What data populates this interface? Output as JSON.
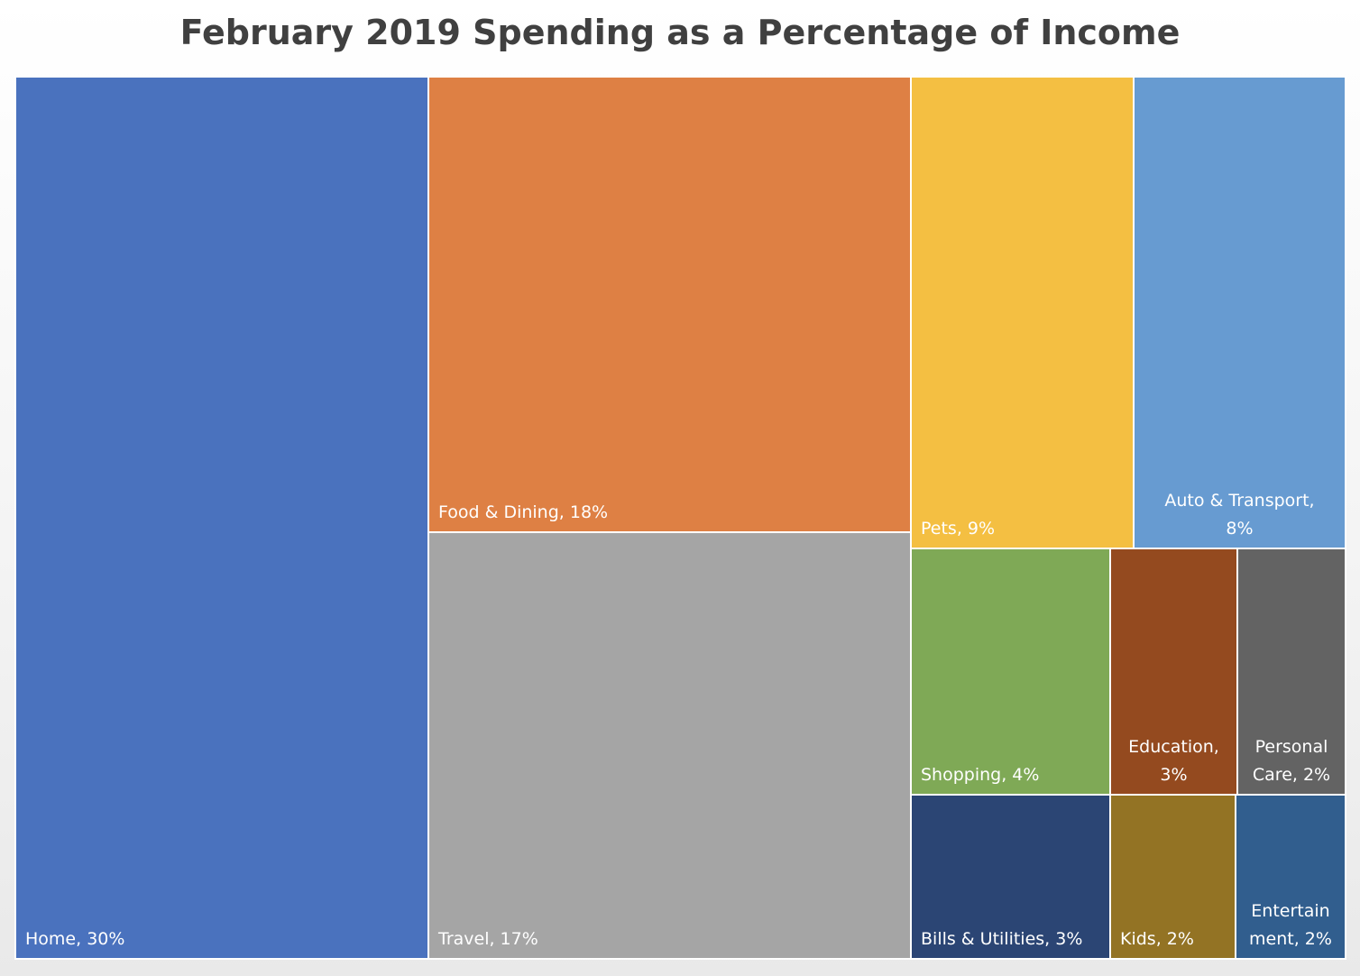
{
  "chart_data": {
    "type": "treemap",
    "title": "February 2019 Spending as a Percentage of Income",
    "label_color": "#ffffff",
    "items": [
      {
        "name": "Home",
        "value": 30,
        "label_lines": [
          "Home, 30%"
        ],
        "color": "#4A72BE"
      },
      {
        "name": "Food & Dining",
        "value": 18,
        "label_lines": [
          "Food & Dining, 18%"
        ],
        "color": "#DE8044"
      },
      {
        "name": "Travel",
        "value": 17,
        "label_lines": [
          "Travel, 17%"
        ],
        "color": "#A5A5A5"
      },
      {
        "name": "Pets",
        "value": 9,
        "label_lines": [
          "Pets, 9%"
        ],
        "color": "#F4BF42"
      },
      {
        "name": "Auto & Transport",
        "value": 8,
        "label_lines": [
          "Auto & Transport,",
          "8%"
        ],
        "color": "#679BD1"
      },
      {
        "name": "Shopping",
        "value": 4,
        "label_lines": [
          "Shopping, 4%"
        ],
        "color": "#7FA956"
      },
      {
        "name": "Education",
        "value": 3,
        "label_lines": [
          "Education,",
          "3%"
        ],
        "color": "#944A1F"
      },
      {
        "name": "Personal Care",
        "value": 2,
        "label_lines": [
          "Personal",
          "Care, 2%"
        ],
        "color": "#636363"
      },
      {
        "name": "Bills & Utilities",
        "value": 3,
        "label_lines": [
          "Bills & Utilities, 3%"
        ],
        "color": "#2B4574"
      },
      {
        "name": "Kids",
        "value": 2,
        "label_lines": [
          "Kids, 2%"
        ],
        "color": "#937324"
      },
      {
        "name": "Entertainment",
        "value": 2,
        "label_lines": [
          "Entertain",
          "ment, 2%"
        ],
        "color": "#315E8E"
      }
    ]
  }
}
